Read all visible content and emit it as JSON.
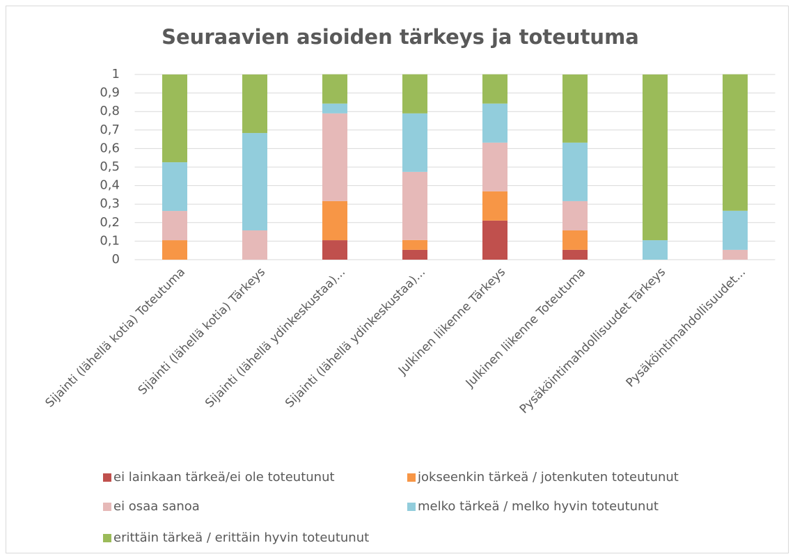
{
  "chart_data": {
    "type": "stacked_bar",
    "title": "Seuraavien asioiden tärkeys ja toteutuma",
    "categories": [
      "Sijainti (lähellä kotia) Toteutuma",
      "Sijainti (lähellä kotia) Tärkeys",
      "Sijainti (lähellä ydinkeskustaa)...",
      "Sijainti (lähellä ydinkeskustaa)...",
      "Julkinen liikenne Tärkeys",
      "Julkinen liikenne Toteutuma",
      "Pysäköintimahdollisuudet Tärkeys",
      "Pysäköintimahdollisuudet..."
    ],
    "series": [
      {
        "name": "ei lainkaan tärkeä/ei ole toteutunut",
        "color": "#c0504d",
        "values": [
          0,
          0,
          0.105,
          0.053,
          0.211,
          0.053,
          0,
          0
        ]
      },
      {
        "name": "jokseenkin tärkeä / jotenkuten toteutunut",
        "color": "#f79646",
        "values": [
          0.105,
          0,
          0.211,
          0.053,
          0.158,
          0.105,
          0,
          0
        ]
      },
      {
        "name": "ei osaa sanoa",
        "color": "#e6b9b8",
        "values": [
          0.158,
          0.158,
          0.474,
          0.368,
          0.263,
          0.158,
          0,
          0.053
        ]
      },
      {
        "name": "melko tärkeä / melko hyvin toteutunut",
        "color": "#92cddc",
        "values": [
          0.263,
          0.526,
          0.053,
          0.316,
          0.211,
          0.316,
          0.105,
          0.211
        ]
      },
      {
        "name": "erittäin tärkeä / erittäin hyvin toteutunut",
        "color": "#9bbb59",
        "values": [
          0.474,
          0.316,
          0.158,
          0.211,
          0.158,
          0.368,
          0.895,
          0.737
        ]
      }
    ],
    "ylim": [
      0,
      1
    ],
    "yticks": [
      0,
      {
        "value": 0.1,
        "label": "0,1"
      },
      {
        "value": 0.2,
        "label": "0,2"
      },
      {
        "value": 0.3,
        "label": "0,3"
      },
      {
        "value": 0.4,
        "label": "0,4"
      },
      {
        "value": 0.5,
        "label": "0,5"
      },
      {
        "value": 0.6,
        "label": "0,6"
      },
      {
        "value": 0.7,
        "label": "0,7"
      },
      {
        "value": 0.8,
        "label": "0,8"
      },
      {
        "value": 0.9,
        "label": "0,9"
      },
      1
    ],
    "grid": true
  }
}
